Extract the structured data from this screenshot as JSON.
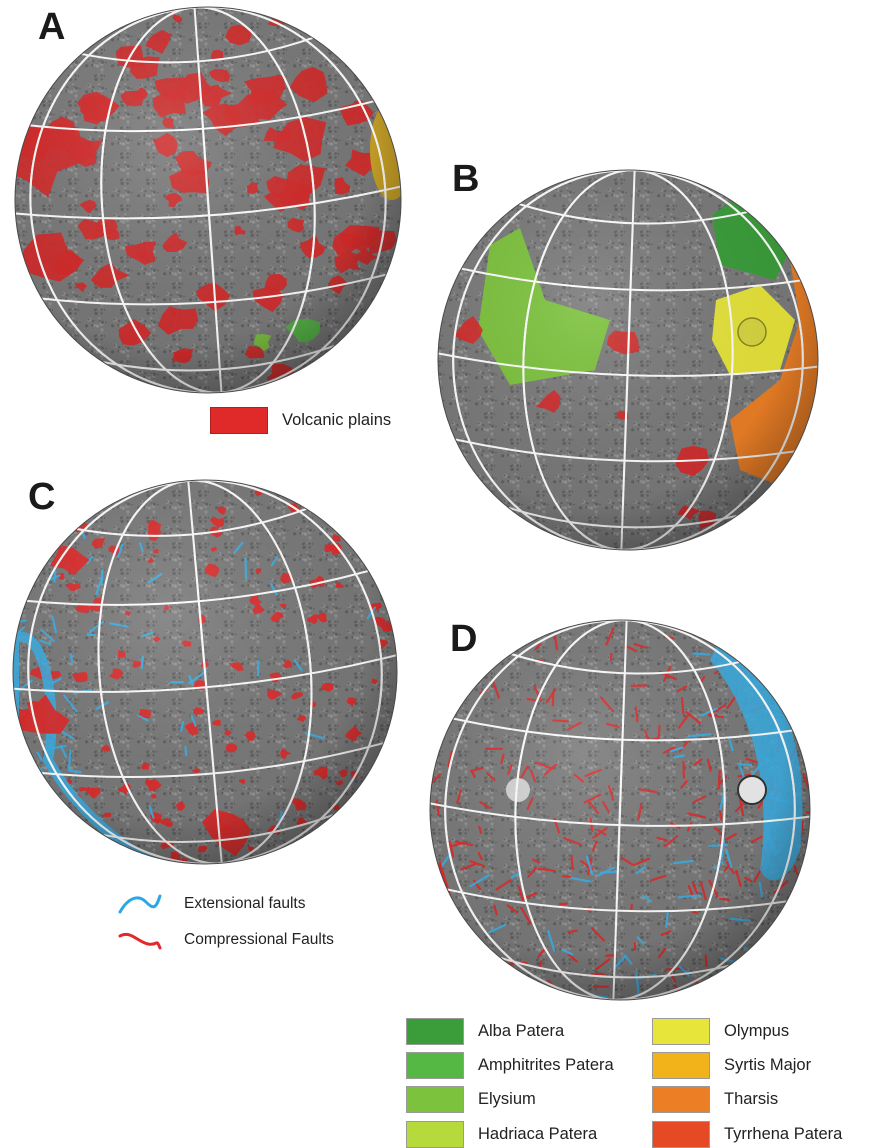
{
  "panels": [
    {
      "id": "A",
      "label": "A"
    },
    {
      "id": "B",
      "label": "B"
    },
    {
      "id": "C",
      "label": "C"
    },
    {
      "id": "D",
      "label": "D"
    }
  ],
  "volcanic_legend": [
    {
      "label": "Alba Patera",
      "color": "#3a9d3a"
    },
    {
      "label": "Amphitrites Patera",
      "color": "#55b845"
    },
    {
      "label": "Elysium",
      "color": "#7cc23c"
    },
    {
      "label": "Hadriaca Patera",
      "color": "#b6d93b"
    },
    {
      "label": "Olympus",
      "color": "#e7e43a"
    },
    {
      "label": "Syrtis Major",
      "color": "#f2b21a"
    },
    {
      "label": "Tharsis",
      "color": "#ec7f26"
    },
    {
      "label": "Tyrrhena Patera",
      "color": "#e54a24"
    }
  ],
  "plains_legend": {
    "label": "Volcanic plains",
    "color": "#e02a2a"
  },
  "fault_legend": [
    {
      "label": "Extensional faults",
      "color": "#2aa8e6"
    },
    {
      "label": "Compressional Faults",
      "color": "#e02a2a"
    }
  ],
  "colors": {
    "globe_surface": "#7a7a7a",
    "graticule": "#ffffff",
    "volcanic_plains": "#d42a2a",
    "extensional": "#3ab0e8",
    "compressional": "#e02a2a"
  }
}
